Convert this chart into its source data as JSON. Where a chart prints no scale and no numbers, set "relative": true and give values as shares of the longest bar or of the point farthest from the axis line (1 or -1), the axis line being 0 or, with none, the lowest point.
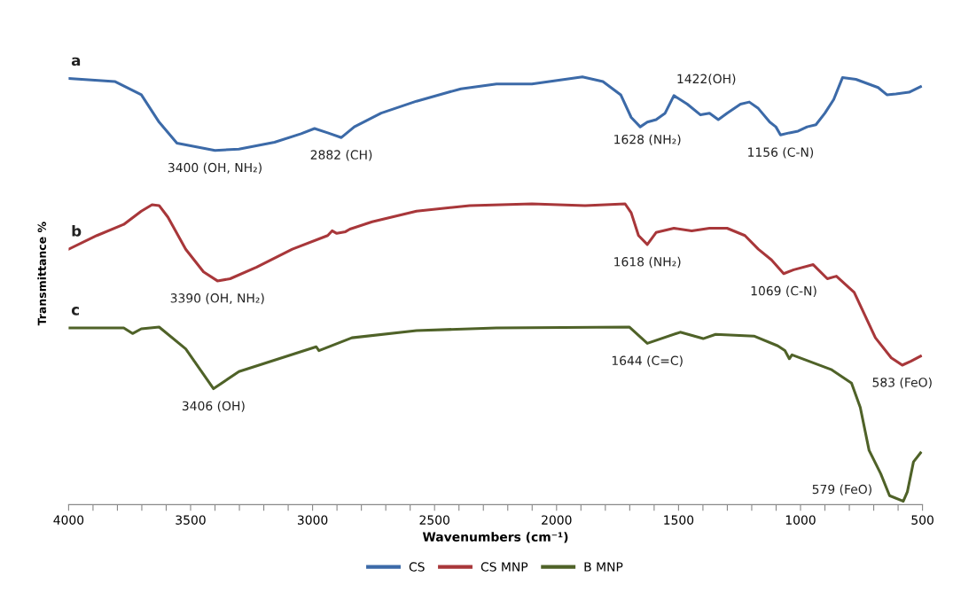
{
  "chart_data": {
    "type": "line",
    "relative": true,
    "xlabel": "Wavenumbers (cm⁻¹)",
    "ylabel": "Transmittance %",
    "xlim": [
      4000,
      500
    ],
    "xticks": [
      4000,
      {
        "value": 3900,
        "label": null
      },
      {
        "value": 3800,
        "label": null
      },
      {
        "value": 3700,
        "label": null
      },
      {
        "value": 3600,
        "label": null
      },
      3500,
      {
        "value": 3400,
        "label": null
      },
      {
        "value": 3300,
        "label": null
      },
      {
        "value": 3200,
        "label": null
      },
      {
        "value": 3100,
        "label": null
      },
      3000,
      {
        "value": 2900,
        "label": null
      },
      {
        "value": 2800,
        "label": null
      },
      {
        "value": 2700,
        "label": null
      },
      {
        "value": 2600,
        "label": null
      },
      2500,
      {
        "value": 2400,
        "label": null
      },
      {
        "value": 2300,
        "label": null
      },
      {
        "value": 2200,
        "label": null
      },
      {
        "value": 2100,
        "label": null
      },
      2000,
      {
        "value": 1900,
        "label": null
      },
      {
        "value": 1800,
        "label": null
      },
      {
        "value": 1700,
        "label": null
      },
      {
        "value": 1600,
        "label": null
      },
      1500,
      {
        "value": 1400,
        "label": null
      },
      {
        "value": 1300,
        "label": null
      },
      {
        "value": 1200,
        "label": null
      },
      {
        "value": 1100,
        "label": null
      },
      1000,
      {
        "value": 900,
        "label": null
      },
      {
        "value": 800,
        "label": null
      },
      {
        "value": 700,
        "label": null
      },
      {
        "value": 600,
        "label": null
      },
      500
    ],
    "grid": false,
    "legend": "bottom",
    "marker": "none",
    "line_style": "solid",
    "series": [
      {
        "name": "CS",
        "color": "#3c6aa8",
        "x": [
          4000,
          3811,
          3702,
          3629,
          3556,
          3400,
          3302,
          3156,
          3047,
          2992,
          2938,
          2882,
          2829,
          2719,
          2574,
          2392,
          2246,
          2101,
          1894,
          1810,
          1737,
          1694,
          1657,
          1628,
          1592,
          1555,
          1519,
          1464,
          1410,
          1373,
          1337,
          1301,
          1246,
          1210,
          1173,
          1126,
          1101,
          1082,
          1046,
          1010,
          973,
          937,
          900,
          864,
          828,
          773,
          682,
          646,
          609,
          555,
          508
        ],
        "values": [
          0.996,
          0.989,
          0.958,
          0.894,
          0.845,
          0.828,
          0.831,
          0.847,
          0.867,
          0.879,
          0.869,
          0.858,
          0.883,
          0.915,
          0.943,
          0.972,
          0.983,
          0.983,
          1.0,
          0.989,
          0.958,
          0.905,
          0.883,
          0.894,
          0.9,
          0.915,
          0.956,
          0.936,
          0.911,
          0.915,
          0.9,
          0.915,
          0.936,
          0.941,
          0.926,
          0.894,
          0.883,
          0.864,
          0.869,
          0.873,
          0.883,
          0.888,
          0.915,
          0.947,
          0.998,
          0.994,
          0.975,
          0.958,
          0.96,
          0.964,
          0.977
        ]
      },
      {
        "name": "CS MNP",
        "color": "#a8373a",
        "x": [
          4000,
          3884,
          3774,
          3702,
          3658,
          3629,
          3593,
          3520,
          3447,
          3390,
          3338,
          3229,
          3083,
          2938,
          2920,
          2901,
          2865,
          2847,
          2756,
          2574,
          2356,
          2101,
          1883,
          1719,
          1694,
          1664,
          1628,
          1592,
          1519,
          1446,
          1373,
          1301,
          1228,
          1173,
          1119,
          1069,
          1028,
          948,
          890,
          853,
          780,
          693,
          628,
          583,
          548,
          508
        ],
        "values": [
          0.597,
          0.629,
          0.655,
          0.686,
          0.701,
          0.699,
          0.672,
          0.597,
          0.544,
          0.523,
          0.528,
          0.555,
          0.597,
          0.629,
          0.64,
          0.634,
          0.638,
          0.644,
          0.661,
          0.686,
          0.699,
          0.703,
          0.699,
          0.703,
          0.682,
          0.629,
          0.608,
          0.636,
          0.646,
          0.64,
          0.646,
          0.646,
          0.629,
          0.597,
          0.572,
          0.54,
          0.549,
          0.561,
          0.528,
          0.534,
          0.496,
          0.39,
          0.343,
          0.326,
          0.335,
          0.347
        ]
      },
      {
        "name": "B MNP",
        "color": "#4f6228",
        "x": [
          4000,
          3774,
          3738,
          3702,
          3629,
          3520,
          3406,
          3302,
          2985,
          2974,
          2839,
          2574,
          2247,
          1701,
          1628,
          1493,
          1399,
          1348,
          1191,
          1093,
          1064,
          1046,
          1035,
          875,
          791,
          755,
          719,
          671,
          635,
          579,
          562,
          537,
          508
        ],
        "values": [
          0.413,
          0.413,
          0.4,
          0.411,
          0.415,
          0.364,
          0.271,
          0.311,
          0.369,
          0.36,
          0.39,
          0.407,
          0.413,
          0.415,
          0.377,
          0.403,
          0.388,
          0.398,
          0.394,
          0.371,
          0.36,
          0.341,
          0.35,
          0.316,
          0.284,
          0.227,
          0.127,
          0.072,
          0.021,
          0.008,
          0.03,
          0.1,
          0.121
        ]
      }
    ],
    "annotations": [
      {
        "text": "a",
        "x": 4000,
        "y": 0.996
      },
      {
        "text": "b",
        "x": 4000,
        "y": 0.597
      },
      {
        "text": "c",
        "x": 4000,
        "y": 0.413
      },
      {
        "text": "3400 (OH, NH₂)",
        "x": 3400,
        "y": 0.828
      },
      {
        "text": "2882 (CH)",
        "x": 2882,
        "y": 0.858
      },
      {
        "text": "1628 (NH₂)",
        "x": 1628,
        "y": 0.894
      },
      {
        "text": "1422(OH)",
        "x": 1519,
        "y": 0.956
      },
      {
        "text": "1156 (C-N)",
        "x": 1082,
        "y": 0.864
      },
      {
        "text": "3390 (OH, NH₂)",
        "x": 3390,
        "y": 0.523
      },
      {
        "text": "1618 (NH₂)",
        "x": 1628,
        "y": 0.608
      },
      {
        "text": "1069 (C-N)",
        "x": 1069,
        "y": 0.54
      },
      {
        "text": "583 (FeO)",
        "x": 583,
        "y": 0.326
      },
      {
        "text": "3406 (OH)",
        "x": 3406,
        "y": 0.271
      },
      {
        "text": "1644 (C=C)",
        "x": 1628,
        "y": 0.377
      },
      {
        "text": "579 (FeO)",
        "x": 579,
        "y": 0.008
      }
    ]
  }
}
